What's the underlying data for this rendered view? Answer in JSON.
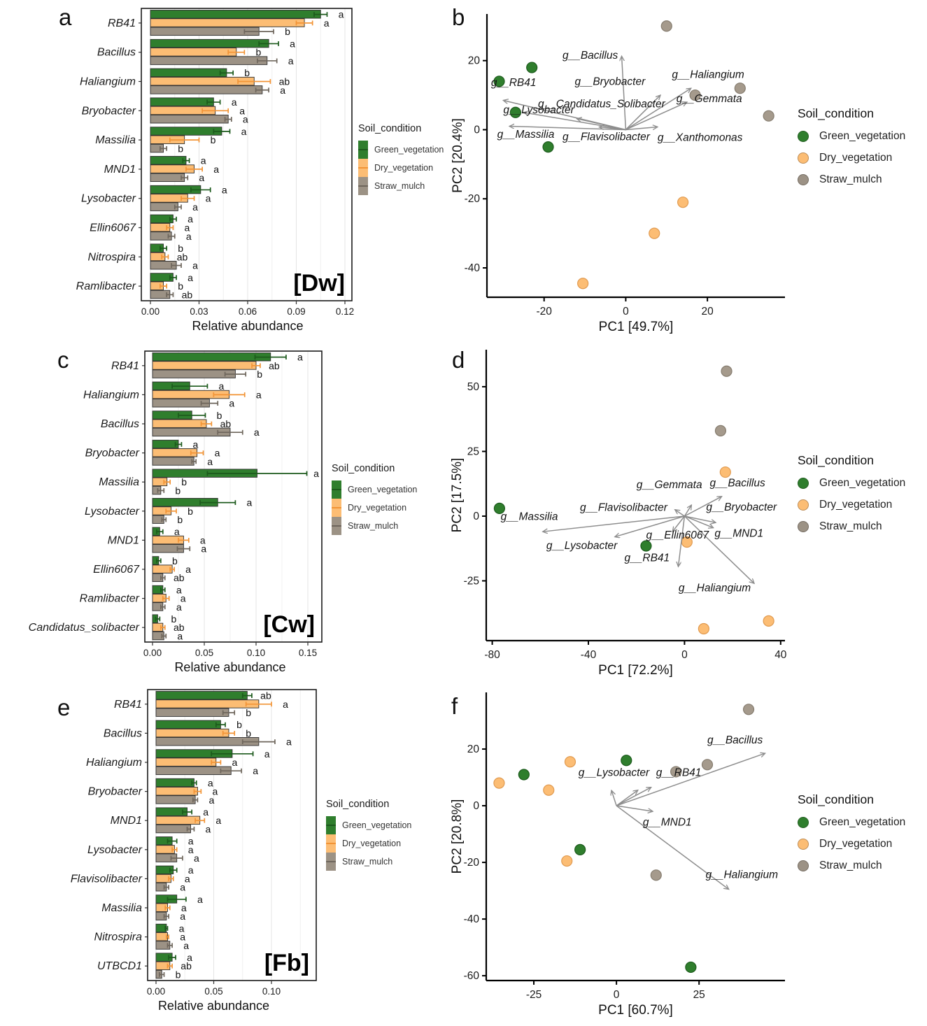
{
  "legend": {
    "title": "Soil_condition",
    "items": [
      {
        "label": "Green_vegetation",
        "color": "#2f7e2d",
        "dark": "#1c5a1c"
      },
      {
        "label": "Dry_vegetation",
        "color": "#fcbd74",
        "dark": "#f29436"
      },
      {
        "label": "Straw_mulch",
        "color": "#9c9285",
        "dark": "#6e665c"
      }
    ]
  },
  "colors": {
    "bar_stroke": "#2e2e2e",
    "arrow": "#8d8d8d",
    "axis": "#000000",
    "text": "#111111",
    "grid_major": "#e4e4e4",
    "grid_minor": "#f0f0f0"
  },
  "chart_data": [
    {
      "id": "a",
      "panel_letter": "a",
      "type": "bar",
      "tag": "[Dw]",
      "xlabel": "Relative abundance",
      "xticks": [
        0,
        0.03,
        0.06,
        0.09,
        0.12
      ],
      "xtick_labels": [
        "0.00",
        "0.03",
        "0.06",
        "0.09",
        "0.12"
      ],
      "xlim": [
        0,
        0.12
      ],
      "categories": [
        "RB41",
        "Bacillus",
        "Haliangium",
        "Bryobacter",
        "Massilia",
        "MND1",
        "Lysobacter",
        "Ellin6067",
        "Nitrospira",
        "Ramlibacter"
      ],
      "series": [
        {
          "name": "Green_vegetation",
          "color": "#2f7e2d",
          "dark": "#1c5a1c",
          "values": [
            0.105,
            0.073,
            0.047,
            0.039,
            0.044,
            0.022,
            0.031,
            0.014,
            0.008,
            0.014
          ],
          "errors": [
            0.004,
            0.006,
            0.004,
            0.004,
            0.005,
            0.002,
            0.006,
            0.002,
            0.002,
            0.002
          ],
          "sig": [
            "a",
            "a",
            "b",
            "a",
            "a",
            "a",
            "a",
            "a",
            "b",
            "a"
          ]
        },
        {
          "name": "Dry_vegetation",
          "color": "#fcbd74",
          "dark": "#f29436",
          "values": [
            0.095,
            0.053,
            0.064,
            0.04,
            0.021,
            0.027,
            0.023,
            0.012,
            0.009,
            0.008
          ],
          "errors": [
            0.005,
            0.005,
            0.01,
            0.008,
            0.009,
            0.005,
            0.004,
            0.002,
            0.002,
            0.002
          ],
          "sig": [
            "a",
            "b",
            "ab",
            "a",
            "b",
            "a",
            "a",
            "a",
            "ab",
            "b"
          ]
        },
        {
          "name": "Straw_mulch",
          "color": "#9c9285",
          "dark": "#6e665c",
          "values": [
            0.067,
            0.072,
            0.069,
            0.048,
            0.008,
            0.021,
            0.017,
            0.013,
            0.016,
            0.012
          ],
          "errors": [
            0.009,
            0.006,
            0.004,
            0.002,
            0.002,
            0.002,
            0.002,
            0.002,
            0.003,
            0.002
          ],
          "sig": [
            "b",
            "a",
            "a",
            "a",
            "b",
            "a",
            "a",
            "a",
            "a",
            "ab"
          ]
        }
      ]
    },
    {
      "id": "b",
      "panel_letter": "b",
      "type": "scatter",
      "xlabel": "PC1 [49.7%]",
      "ylabel": "PC2 [20.4%]",
      "xticks": [
        -20,
        0,
        20
      ],
      "yticks": [
        20,
        0,
        -20,
        -40
      ],
      "xlim": [
        -34,
        39
      ],
      "ylim": [
        -48.5,
        33.5
      ],
      "groups": [
        {
          "name": "Green_vegetation",
          "color": "#2f7e2d",
          "dark": "#1c5a1c",
          "points": [
            [
              -23,
              18
            ],
            [
              -31,
              14
            ],
            [
              -27,
              5
            ],
            [
              -19,
              -5
            ]
          ]
        },
        {
          "name": "Dry_vegetation",
          "color": "#fcbd74",
          "dark": "#e09a50",
          "points": [
            [
              14,
              -21
            ],
            [
              7,
              -30
            ],
            [
              -10.5,
              -44.5
            ]
          ]
        },
        {
          "name": "Straw_mulch",
          "color": "#a59a8c",
          "dark": "#857c6f",
          "points": [
            [
              10,
              30
            ],
            [
              17,
              10
            ],
            [
              28,
              12
            ],
            [
              35,
              4
            ]
          ]
        }
      ],
      "arrows": [
        {
          "label": "g__Bacillus",
          "end": [
            -1,
            21.3
          ],
          "at": [
            -15.5,
            20.5
          ]
        },
        {
          "label": "g__Bryobacter",
          "end": [
            8.5,
            10
          ],
          "at": [
            -12.5,
            13
          ]
        },
        {
          "label": "g__Haliangium",
          "end": [
            16,
            12
          ],
          "at": [
            11.3,
            15
          ]
        },
        {
          "label": "g__Gemmata",
          "end": [
            15,
            8
          ],
          "at": [
            12.4,
            8
          ]
        },
        {
          "label": "g__Candidatus_Solibacter",
          "end": [
            -12,
            3.2
          ],
          "at": [
            -21.5,
            6.5
          ]
        },
        {
          "label": "g__Lysobacter",
          "end": [
            -25,
            5
          ],
          "at": [
            -30,
            4.7
          ]
        },
        {
          "label": "g__RB41",
          "end": [
            -30,
            8.5
          ],
          "at": [
            -33,
            12.6
          ]
        },
        {
          "label": "g__Massilia",
          "end": [
            -28.5,
            1
          ],
          "at": [
            -31.5,
            -2.3
          ]
        },
        {
          "label": "g__Flavisolibacter",
          "end": [
            -6.5,
            0.8
          ],
          "at": [
            -15.5,
            -3
          ]
        },
        {
          "label": "g__Xanthomonas",
          "end": [
            7.8,
            0.8
          ],
          "at": [
            7.8,
            -3.2
          ]
        }
      ]
    },
    {
      "id": "c",
      "panel_letter": "c",
      "type": "bar",
      "tag": "[Cw]",
      "xlabel": "Relative abundance",
      "xticks": [
        0,
        0.05,
        0.1,
        0.15
      ],
      "xtick_labels": [
        "0.00",
        "0.05",
        "0.10",
        "0.15"
      ],
      "xlim": [
        0,
        0.15
      ],
      "categories": [
        "RB41",
        "Haliangium",
        "Bacillus",
        "Bryobacter",
        "Massilia",
        "Lysobacter",
        "MND1",
        "Ellin6067",
        "Ramlibacter",
        "Candidatus_solibacter"
      ],
      "series": [
        {
          "name": "Green_vegetation",
          "color": "#2f7e2d",
          "dark": "#1c5a1c",
          "values": [
            0.114,
            0.036,
            0.038,
            0.025,
            0.101,
            0.063,
            0.007,
            0.006,
            0.01,
            0.005
          ],
          "errors": [
            0.015,
            0.017,
            0.013,
            0.003,
            0.048,
            0.017,
            0.003,
            0.002,
            0.002,
            0.002
          ],
          "sig": [
            "a",
            "a",
            "b",
            "a",
            "a",
            "a",
            "a",
            "b",
            "a",
            "b"
          ]
        },
        {
          "name": "Dry_vegetation",
          "color": "#fcbd74",
          "dark": "#f29436",
          "values": [
            0.1,
            0.074,
            0.052,
            0.043,
            0.014,
            0.018,
            0.03,
            0.019,
            0.013,
            0.01
          ],
          "errors": [
            0.004,
            0.015,
            0.005,
            0.006,
            0.003,
            0.005,
            0.005,
            0.002,
            0.003,
            0.002
          ],
          "sig": [
            "ab",
            "a",
            "ab",
            "a",
            "b",
            "b",
            "a",
            "a",
            "a",
            "ab"
          ]
        },
        {
          "name": "Straw_mulch",
          "color": "#9c9285",
          "dark": "#6e665c",
          "values": [
            0.08,
            0.055,
            0.075,
            0.04,
            0.008,
            0.011,
            0.03,
            0.01,
            0.01,
            0.011
          ],
          "errors": [
            0.01,
            0.008,
            0.012,
            0.002,
            0.003,
            0.002,
            0.006,
            0.002,
            0.002,
            0.002
          ],
          "sig": [
            "b",
            "a",
            "a",
            "a",
            "b",
            "b",
            "a",
            "ab",
            "a",
            "a"
          ]
        }
      ]
    },
    {
      "id": "d",
      "panel_letter": "d",
      "type": "scatter",
      "xlabel": "PC1 [72.2%]",
      "ylabel": "PC2 [17.5%]",
      "xticks": [
        -80,
        -40,
        0,
        40
      ],
      "yticks": [
        50,
        25,
        0,
        -25
      ],
      "xlim": [
        -82.5,
        41.8
      ],
      "ylim": [
        -48.1,
        64.3
      ],
      "groups": [
        {
          "name": "Green_vegetation",
          "color": "#2f7e2d",
          "dark": "#1c5a1c",
          "points": [
            [
              -77,
              3
            ],
            [
              -16,
              -11.5
            ]
          ]
        },
        {
          "name": "Dry_vegetation",
          "color": "#fcbd74",
          "dark": "#e09a50",
          "points": [
            [
              17,
              17
            ],
            [
              1,
              -10
            ],
            [
              8,
              -43.5
            ],
            [
              35,
              -40.5
            ]
          ]
        },
        {
          "name": "Straw_mulch",
          "color": "#a59a8c",
          "dark": "#857c6f",
          "points": [
            [
              17.5,
              56
            ],
            [
              15,
              33
            ]
          ]
        }
      ],
      "arrows": [
        {
          "label": "g__Gemmata",
          "end": [
            2.9,
            4.3
          ],
          "at": [
            -20,
            10.8
          ]
        },
        {
          "label": "g__Bacillus",
          "end": [
            15.5,
            7.6
          ],
          "at": [
            10.5,
            11.5
          ]
        },
        {
          "label": "g__Flavisolibacter",
          "end": [
            -4,
            2.5
          ],
          "at": [
            -43.5,
            2
          ]
        },
        {
          "label": "g__Bryobacter",
          "end": [
            13,
            -2.5
          ],
          "at": [
            9,
            2.2
          ]
        },
        {
          "label": "g__Massilia",
          "end": [
            -59,
            -6
          ],
          "at": [
            -76.5,
            -1.5
          ]
        },
        {
          "label": "g__Lysobacter",
          "end": [
            -29,
            -8
          ],
          "at": [
            -57.5,
            -12.7
          ]
        },
        {
          "label": "g__Ellin6067",
          "end": [
            -5,
            -6
          ],
          "at": [
            -16,
            -8.6
          ]
        },
        {
          "label": "g__MND1",
          "end": [
            12,
            -4.5
          ],
          "at": [
            12.5,
            -8
          ]
        },
        {
          "label": "g__RB41",
          "end": [
            -2.6,
            -19.5
          ],
          "at": [
            -25,
            -17.5
          ]
        },
        {
          "label": "g__Haliangium",
          "end": [
            29,
            -26
          ],
          "at": [
            -2.5,
            -29
          ]
        }
      ]
    },
    {
      "id": "e",
      "panel_letter": "e",
      "type": "bar",
      "tag": "[Fb]",
      "xlabel": "Relative abundance",
      "xticks": [
        0,
        0.05,
        0.1
      ],
      "xtick_labels": [
        "0.00",
        "0.05",
        "0.10"
      ],
      "xlim": [
        0,
        0.1
      ],
      "categories": [
        "RB41",
        "Bacillus",
        "Haliangium",
        "Bryobacter",
        "MND1",
        "Lysobacter",
        "Flavisolibacter",
        "Massilia",
        "Nitrospira",
        "UTBCD1"
      ],
      "series": [
        {
          "name": "Green_vegetation",
          "color": "#2f7e2d",
          "dark": "#1c5a1c",
          "values": [
            0.079,
            0.056,
            0.066,
            0.033,
            0.027,
            0.014,
            0.015,
            0.018,
            0.009,
            0.014
          ],
          "errors": [
            0.004,
            0.004,
            0.018,
            0.002,
            0.004,
            0.004,
            0.003,
            0.008,
            0.001,
            0.003
          ],
          "sig": [
            "ab",
            "b",
            "a",
            "a",
            "a",
            "a",
            "a",
            "a",
            "a",
            "a"
          ]
        },
        {
          "name": "Dry_vegetation",
          "color": "#fcbd74",
          "dark": "#f29436",
          "values": [
            0.089,
            0.063,
            0.052,
            0.036,
            0.038,
            0.016,
            0.013,
            0.01,
            0.01,
            0.012
          ],
          "errors": [
            0.011,
            0.005,
            0.004,
            0.003,
            0.004,
            0.002,
            0.002,
            0.002,
            0.001,
            0.002
          ],
          "sig": [
            "a",
            "b",
            "a",
            "a",
            "a",
            "a",
            "a",
            "a",
            "a",
            "ab"
          ]
        },
        {
          "name": "Straw_mulch",
          "color": "#9c9285",
          "dark": "#6e665c",
          "values": [
            0.063,
            0.089,
            0.065,
            0.034,
            0.03,
            0.018,
            0.009,
            0.009,
            0.012,
            0.005
          ],
          "errors": [
            0.005,
            0.014,
            0.009,
            0.002,
            0.003,
            0.005,
            0.002,
            0.002,
            0.002,
            0.002
          ],
          "sig": [
            "b",
            "a",
            "a",
            "a",
            "a",
            "a",
            "a",
            "a",
            "a",
            "b"
          ]
        }
      ]
    },
    {
      "id": "f",
      "panel_letter": "f",
      "type": "scatter",
      "xlabel": "PC1 [60.7%]",
      "ylabel": "PC2 [20.8%]",
      "xticks": [
        -25,
        0,
        25
      ],
      "yticks": [
        20,
        0,
        -20,
        -40,
        -60
      ],
      "xlim": [
        -39.4,
        51
      ],
      "ylim": [
        -61.7,
        40
      ],
      "groups": [
        {
          "name": "Green_vegetation",
          "color": "#2f7e2d",
          "dark": "#1c5a1c",
          "points": [
            [
              -28,
              11
            ],
            [
              3,
              16
            ],
            [
              -11,
              -15.5
            ],
            [
              22.5,
              -57
            ]
          ]
        },
        {
          "name": "Dry_vegetation",
          "color": "#fcbd74",
          "dark": "#e09a50",
          "points": [
            [
              -35.5,
              8
            ],
            [
              -14,
              15.5
            ],
            [
              -20.5,
              5.5
            ],
            [
              -15,
              -19.5
            ]
          ]
        },
        {
          "name": "Straw_mulch",
          "color": "#a59a8c",
          "dark": "#857c6f",
          "points": [
            [
              40,
              34
            ],
            [
              18,
              12
            ],
            [
              27.5,
              14.5
            ],
            [
              12,
              -24.5
            ]
          ]
        }
      ],
      "arrows": [
        {
          "label": "g__Bacillus",
          "end": [
            45,
            18.5
          ],
          "at": [
            27.5,
            22
          ]
        },
        {
          "label": "g__Lysobacter",
          "end": [
            -1.5,
            5.4
          ],
          "at": [
            -11.5,
            10.5
          ]
        },
        {
          "label": "g__RB41",
          "end": [
            10.5,
            6.5
          ],
          "at": [
            12,
            10.5
          ]
        },
        {
          "label": "",
          "end": [
            6.5,
            5.5
          ],
          "at": [
            0,
            0
          ]
        },
        {
          "label": "g__MND1",
          "end": [
            11,
            -2
          ],
          "at": [
            8,
            -7
          ]
        },
        {
          "label": "g__Haliangium",
          "end": [
            34,
            -29.5
          ],
          "at": [
            27,
            -25.5
          ]
        }
      ]
    }
  ]
}
